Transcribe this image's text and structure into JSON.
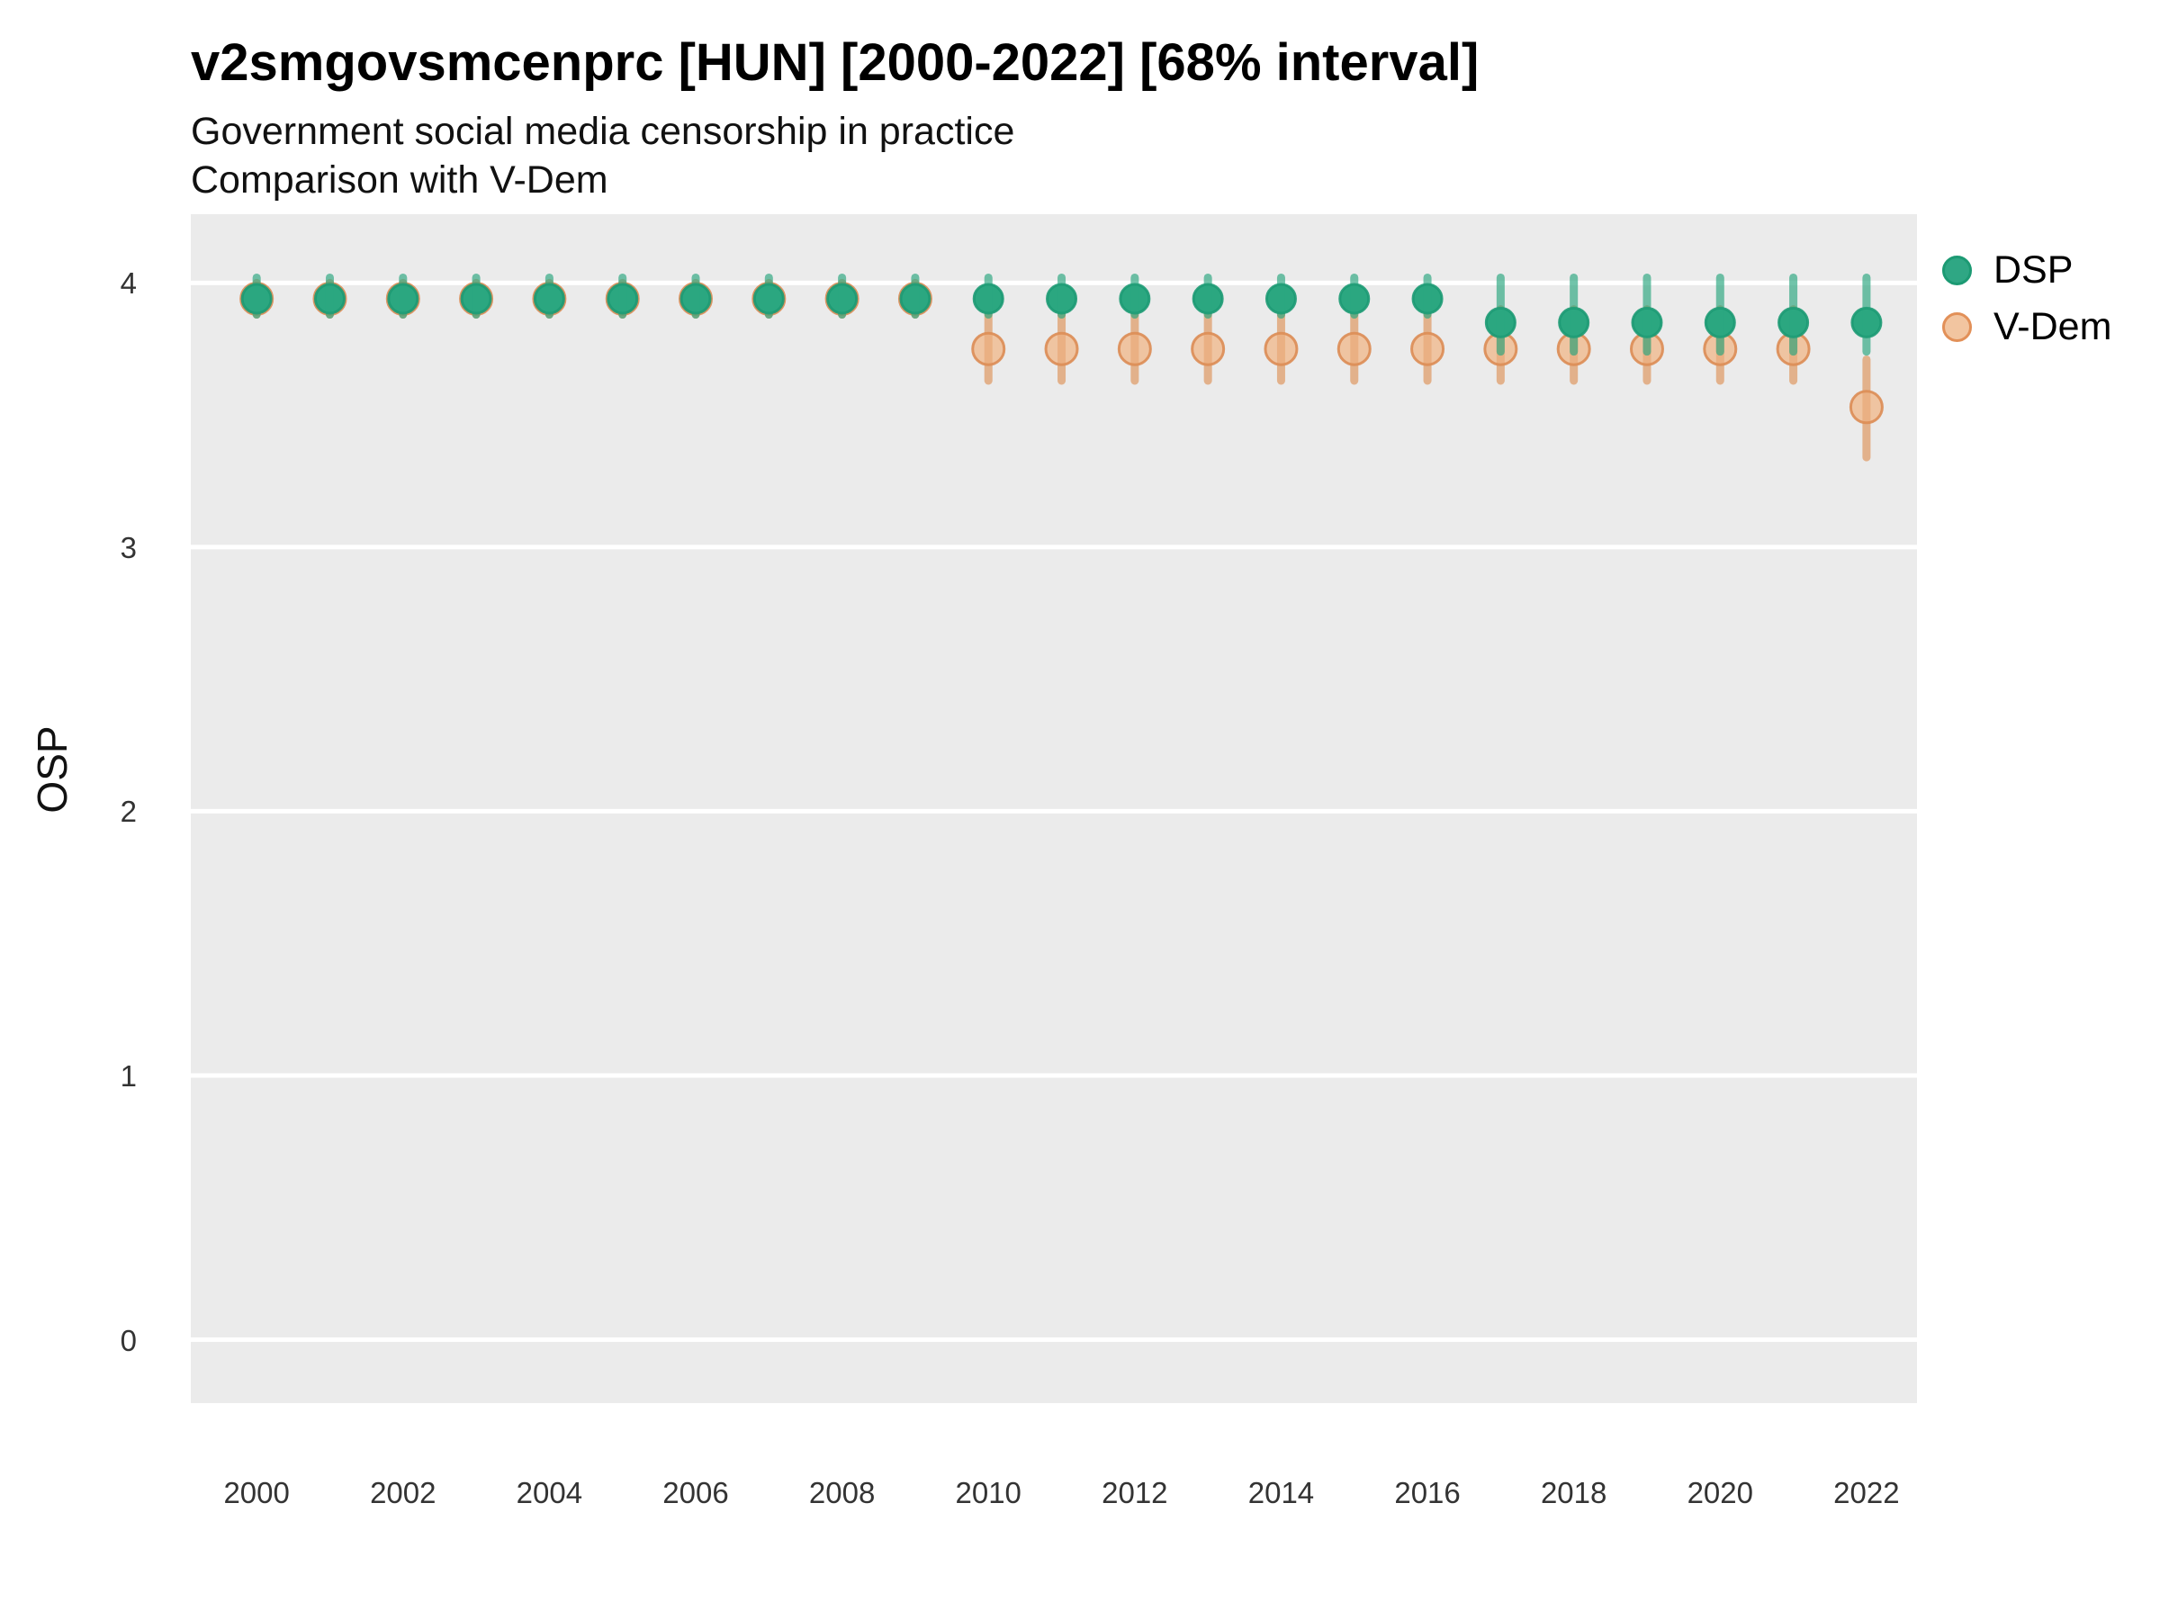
{
  "title": "v2smgovsmcenprc [HUN] [2000-2022] [68% interval]",
  "subtitle": "Government social media censorship in practice",
  "subtitle2": "Comparison with V-Dem",
  "ylabel": "OSP",
  "legend": {
    "items": [
      {
        "label": "DSP",
        "fill": "#2FA784",
        "stroke": "#1C9A73"
      },
      {
        "label": "V-Dem",
        "fill": "#F2C5A0",
        "stroke": "#E29058"
      }
    ]
  },
  "colors": {
    "panel_background": "#EBEBEB",
    "gridline": "#FFFFFF",
    "dsp_green": "#2BA780",
    "vdem_orange": "#E0955C"
  },
  "chart_data": {
    "type": "scatter",
    "title": "v2smgovsmcenprc [HUN] [2000-2022] [68% interval]",
    "subtitle": "Government social media censorship in practice",
    "subtitle2": "Comparison with V-Dem",
    "xlabel": "",
    "ylabel": "OSP",
    "xlim": [
      1999.1,
      2022.69
    ],
    "ylim": [
      -0.24,
      4.26
    ],
    "x_ticks": [
      2000,
      2002,
      2004,
      2006,
      2008,
      2010,
      2012,
      2014,
      2016,
      2018,
      2020,
      2022
    ],
    "y_ticks": [
      0,
      1,
      2,
      3,
      4
    ],
    "grid": "major-horizontal-only",
    "legend_position": "right-top",
    "interval": "68%",
    "series": [
      {
        "name": "V-Dem",
        "point_fill": "#F0BA8E",
        "point_stroke": "#DC8C54",
        "bar_color": "#E0955C",
        "points": [
          {
            "year": 2000,
            "est": 3.94,
            "lo": 3.88,
            "hi": 4.0
          },
          {
            "year": 2001,
            "est": 3.94,
            "lo": 3.88,
            "hi": 4.0
          },
          {
            "year": 2002,
            "est": 3.94,
            "lo": 3.88,
            "hi": 4.0
          },
          {
            "year": 2003,
            "est": 3.94,
            "lo": 3.88,
            "hi": 4.0
          },
          {
            "year": 2004,
            "est": 3.94,
            "lo": 3.88,
            "hi": 4.0
          },
          {
            "year": 2005,
            "est": 3.94,
            "lo": 3.88,
            "hi": 4.0
          },
          {
            "year": 2006,
            "est": 3.94,
            "lo": 3.88,
            "hi": 4.0
          },
          {
            "year": 2007,
            "est": 3.94,
            "lo": 3.88,
            "hi": 4.0
          },
          {
            "year": 2008,
            "est": 3.94,
            "lo": 3.88,
            "hi": 4.0
          },
          {
            "year": 2009,
            "est": 3.94,
            "lo": 3.88,
            "hi": 4.0
          },
          {
            "year": 2010,
            "est": 3.75,
            "lo": 3.63,
            "hi": 3.9
          },
          {
            "year": 2011,
            "est": 3.75,
            "lo": 3.63,
            "hi": 3.9
          },
          {
            "year": 2012,
            "est": 3.75,
            "lo": 3.63,
            "hi": 3.9
          },
          {
            "year": 2013,
            "est": 3.75,
            "lo": 3.63,
            "hi": 3.9
          },
          {
            "year": 2014,
            "est": 3.75,
            "lo": 3.63,
            "hi": 3.9
          },
          {
            "year": 2015,
            "est": 3.75,
            "lo": 3.63,
            "hi": 3.9
          },
          {
            "year": 2016,
            "est": 3.75,
            "lo": 3.63,
            "hi": 3.9
          },
          {
            "year": 2017,
            "est": 3.75,
            "lo": 3.63,
            "hi": 3.9
          },
          {
            "year": 2018,
            "est": 3.75,
            "lo": 3.63,
            "hi": 3.9
          },
          {
            "year": 2019,
            "est": 3.75,
            "lo": 3.63,
            "hi": 3.9
          },
          {
            "year": 2020,
            "est": 3.75,
            "lo": 3.63,
            "hi": 3.9
          },
          {
            "year": 2021,
            "est": 3.75,
            "lo": 3.63,
            "hi": 3.9
          },
          {
            "year": 2022,
            "est": 3.53,
            "lo": 3.34,
            "hi": 3.71
          }
        ]
      },
      {
        "name": "DSP",
        "point_fill": "#2BA780",
        "point_stroke": "#1C9A73",
        "bar_color": "#2BA780",
        "points": [
          {
            "year": 2000,
            "est": 3.94,
            "lo": 3.88,
            "hi": 4.02
          },
          {
            "year": 2001,
            "est": 3.94,
            "lo": 3.88,
            "hi": 4.02
          },
          {
            "year": 2002,
            "est": 3.94,
            "lo": 3.88,
            "hi": 4.02
          },
          {
            "year": 2003,
            "est": 3.94,
            "lo": 3.88,
            "hi": 4.02
          },
          {
            "year": 2004,
            "est": 3.94,
            "lo": 3.88,
            "hi": 4.02
          },
          {
            "year": 2005,
            "est": 3.94,
            "lo": 3.88,
            "hi": 4.02
          },
          {
            "year": 2006,
            "est": 3.94,
            "lo": 3.88,
            "hi": 4.02
          },
          {
            "year": 2007,
            "est": 3.94,
            "lo": 3.88,
            "hi": 4.02
          },
          {
            "year": 2008,
            "est": 3.94,
            "lo": 3.88,
            "hi": 4.02
          },
          {
            "year": 2009,
            "est": 3.94,
            "lo": 3.88,
            "hi": 4.02
          },
          {
            "year": 2010,
            "est": 3.94,
            "lo": 3.88,
            "hi": 4.02
          },
          {
            "year": 2011,
            "est": 3.94,
            "lo": 3.88,
            "hi": 4.02
          },
          {
            "year": 2012,
            "est": 3.94,
            "lo": 3.88,
            "hi": 4.02
          },
          {
            "year": 2013,
            "est": 3.94,
            "lo": 3.88,
            "hi": 4.02
          },
          {
            "year": 2014,
            "est": 3.94,
            "lo": 3.88,
            "hi": 4.02
          },
          {
            "year": 2015,
            "est": 3.94,
            "lo": 3.88,
            "hi": 4.02
          },
          {
            "year": 2016,
            "est": 3.94,
            "lo": 3.88,
            "hi": 4.02
          },
          {
            "year": 2017,
            "est": 3.85,
            "lo": 3.74,
            "hi": 4.02
          },
          {
            "year": 2018,
            "est": 3.85,
            "lo": 3.74,
            "hi": 4.02
          },
          {
            "year": 2019,
            "est": 3.85,
            "lo": 3.74,
            "hi": 4.02
          },
          {
            "year": 2020,
            "est": 3.85,
            "lo": 3.74,
            "hi": 4.02
          },
          {
            "year": 2021,
            "est": 3.85,
            "lo": 3.74,
            "hi": 4.02
          },
          {
            "year": 2022,
            "est": 3.85,
            "lo": 3.74,
            "hi": 4.02
          }
        ]
      }
    ]
  }
}
